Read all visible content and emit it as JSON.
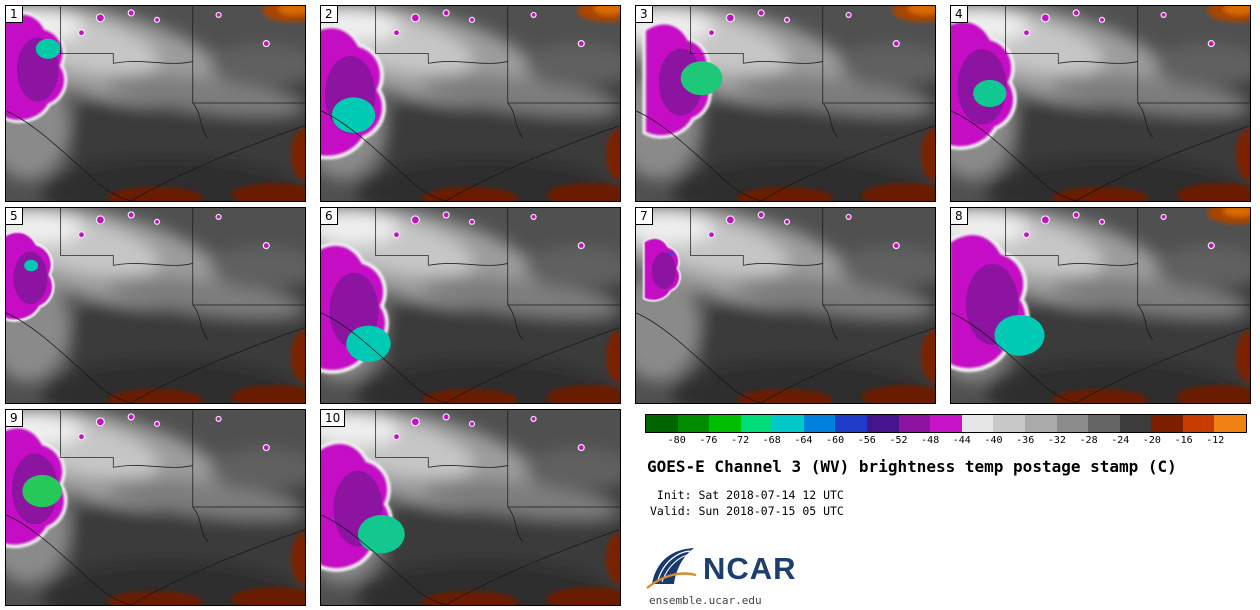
{
  "panels": [
    {
      "num": "1"
    },
    {
      "num": "2"
    },
    {
      "num": "3"
    },
    {
      "num": "4"
    },
    {
      "num": "5"
    },
    {
      "num": "6"
    },
    {
      "num": "7"
    },
    {
      "num": "8"
    },
    {
      "num": "9"
    },
    {
      "num": "10"
    }
  ],
  "colorbar": {
    "ticks": [
      "-80",
      "-76",
      "-72",
      "-68",
      "-64",
      "-60",
      "-56",
      "-52",
      "-48",
      "-44",
      "-40",
      "-36",
      "-32",
      "-28",
      "-24",
      "-20",
      "-16",
      "-12"
    ],
    "colors": [
      "#006400",
      "#008c00",
      "#00be00",
      "#00dc78",
      "#00c8c8",
      "#0082dc",
      "#1e3cc8",
      "#46148c",
      "#8c14a0",
      "#c814c8",
      "#e6e6e6",
      "#c8c8c8",
      "#aaaaaa",
      "#8c8c8c",
      "#646464",
      "#3c3c3c",
      "#7d1e00",
      "#c83c00",
      "#f08214"
    ]
  },
  "legend": {
    "title": "GOES-E Channel 3 (WV) brightness temp postage stamp (C)",
    "init_line": " Init: Sat 2018-07-14 12 UTC",
    "valid_line": "Valid: Sun 2018-07-15 05 UTC",
    "logo_text": "NCAR",
    "footer_url": "ensemble.ucar.edu"
  },
  "chart_data": {
    "type": "heatmap",
    "title": "GOES-E Channel 3 (WV) brightness temp postage stamp (C)",
    "units": "C",
    "panel_labels": [
      "1",
      "2",
      "3",
      "4",
      "5",
      "6",
      "7",
      "8",
      "9",
      "10"
    ],
    "colorbar_ticks": [
      -80,
      -76,
      -72,
      -68,
      -64,
      -60,
      -56,
      -52,
      -48,
      -44,
      -40,
      -36,
      -32,
      -28,
      -24,
      -20,
      -16,
      -12
    ],
    "colorbar_colors": [
      "#006400",
      "#008c00",
      "#00be00",
      "#00dc78",
      "#00c8c8",
      "#0082dc",
      "#1e3cc8",
      "#46148c",
      "#8c14a0",
      "#c814c8",
      "#e6e6e6",
      "#c8c8c8",
      "#aaaaaa",
      "#8c8c8c",
      "#646464",
      "#3c3c3c",
      "#7d1e00",
      "#c83c00",
      "#f08214"
    ],
    "init": "Sat 2018-07-14 12 UTC",
    "valid": "Sun 2018-07-15 05 UTC",
    "legend_position": "bottom-right"
  }
}
